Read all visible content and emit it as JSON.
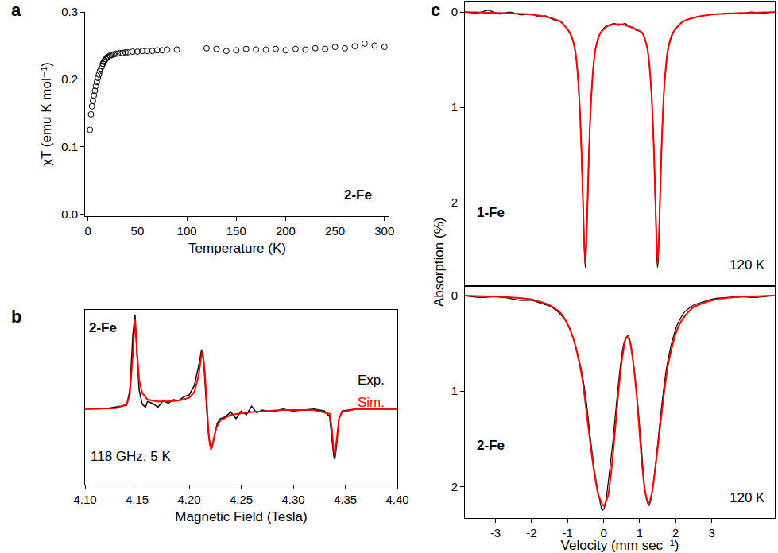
{
  "chart_data": [
    {
      "type": "scatter",
      "label": "a",
      "xlabel": "Temperature (K)",
      "ylabel": "χT (emu K mol⁻¹)",
      "xlim": [
        -3,
        305
      ],
      "xticks": [
        0,
        50,
        100,
        150,
        200,
        250,
        300
      ],
      "ylim": [
        -0.003,
        0.3
      ],
      "yticks": [
        {
          "value": 0,
          "label": "0.0"
        },
        {
          "value": 0.1,
          "label": "0.1"
        },
        {
          "value": 0.2,
          "label": "0.2"
        },
        {
          "value": 0.3,
          "label": "0.3"
        }
      ],
      "annotations": [
        "2-Fe"
      ],
      "series": [
        {
          "color": "#000000",
          "marker": "open_circle",
          "x": [
            2,
            3,
            4,
            5,
            6,
            7,
            8,
            9,
            10,
            11,
            12,
            13,
            14,
            15,
            16,
            17,
            18,
            19,
            20,
            22,
            24,
            26,
            28,
            30,
            32,
            35,
            38,
            40,
            45,
            50,
            55,
            60,
            65,
            70,
            75,
            80,
            90,
            120,
            130,
            140,
            150,
            160,
            170,
            180,
            190,
            200,
            210,
            220,
            230,
            240,
            250,
            260,
            270,
            280,
            290,
            300
          ],
          "values": [
            0.125,
            0.148,
            0.16,
            0.168,
            0.176,
            0.183,
            0.19,
            0.196,
            0.202,
            0.207,
            0.212,
            0.216,
            0.22,
            0.223,
            0.226,
            0.228,
            0.23,
            0.232,
            0.233,
            0.235,
            0.236,
            0.237,
            0.238,
            0.238,
            0.239,
            0.239,
            0.24,
            0.24,
            0.241,
            0.241,
            0.242,
            0.242,
            0.242,
            0.243,
            0.243,
            0.244,
            0.244,
            0.246,
            0.245,
            0.242,
            0.243,
            0.245,
            0.244,
            0.244,
            0.245,
            0.243,
            0.245,
            0.244,
            0.246,
            0.245,
            0.248,
            0.246,
            0.249,
            0.253,
            0.25,
            0.248
          ]
        }
      ]
    },
    {
      "type": "line",
      "label": "b",
      "xlabel": "Magnetic Field (Tesla)",
      "xlim": [
        4.1,
        4.4
      ],
      "xticks": [
        {
          "value": 4.1,
          "label": "4.10"
        },
        {
          "value": 4.15,
          "label": "4.15"
        },
        {
          "value": 4.2,
          "label": "4.20"
        },
        {
          "value": 4.25,
          "label": "4.25"
        },
        {
          "value": 4.3,
          "label": "4.30"
        },
        {
          "value": 4.35,
          "label": "4.35"
        },
        {
          "value": 4.4,
          "label": "4.40"
        }
      ],
      "ylim": [
        -0.8,
        1.05
      ],
      "yticks": [],
      "tick_labels": "x",
      "legend": "right",
      "annotations": [
        "2-Fe",
        "118 GHz, 5 K"
      ],
      "series": [
        {
          "name": "Exp.",
          "color": "#000000",
          "line_style": "solid",
          "x": [
            4.1,
            4.12,
            4.14,
            4.143,
            4.146,
            4.148,
            4.15,
            4.152,
            4.155,
            4.158,
            4.16,
            4.165,
            4.17,
            4.175,
            4.18,
            4.185,
            4.19,
            4.195,
            4.2,
            4.205,
            4.209,
            4.212,
            4.214,
            4.216,
            4.218,
            4.22,
            4.222,
            4.224,
            4.227,
            4.23,
            4.235,
            4.24,
            4.245,
            4.25,
            4.255,
            4.26,
            4.265,
            4.27,
            4.28,
            4.29,
            4.3,
            4.31,
            4.32,
            4.33,
            4.335,
            4.337,
            4.339,
            4.34,
            4.342,
            4.344,
            4.347,
            4.36,
            4.38,
            4.4
          ],
          "values": [
            0,
            0.005,
            0.04,
            0.2,
            0.8,
            1.0,
            0.55,
            0.2,
            0.05,
            0.02,
            0.08,
            0.06,
            0.02,
            0.09,
            0.06,
            0.1,
            0.09,
            0.13,
            0.15,
            0.25,
            0.45,
            0.63,
            0.5,
            0.1,
            -0.2,
            -0.38,
            -0.41,
            -0.3,
            -0.15,
            -0.1,
            -0.08,
            -0.03,
            -0.1,
            -0.02,
            -0.06,
            0.03,
            -0.04,
            -0.01,
            -0.03,
            0.0,
            -0.02,
            -0.01,
            0,
            -0.02,
            -0.08,
            -0.3,
            -0.5,
            -0.53,
            -0.35,
            -0.1,
            -0.02,
            0,
            0,
            0
          ]
        },
        {
          "name": "Sim.",
          "color": "#ff0000",
          "line_style": "solid",
          "x": [
            4.1,
            4.13,
            4.14,
            4.143,
            4.146,
            4.148,
            4.15,
            4.152,
            4.155,
            4.16,
            4.17,
            4.18,
            4.19,
            4.2,
            4.205,
            4.209,
            4.212,
            4.213,
            4.215,
            4.217,
            4.219,
            4.221,
            4.223,
            4.226,
            4.23,
            4.24,
            4.26,
            4.29,
            4.32,
            4.335,
            4.337,
            4.339,
            4.34,
            4.342,
            4.344,
            4.347,
            4.36,
            4.4
          ],
          "values": [
            0,
            0.01,
            0.05,
            0.15,
            0.6,
            0.95,
            0.6,
            0.3,
            0.17,
            0.1,
            0.08,
            0.08,
            0.09,
            0.12,
            0.18,
            0.35,
            0.58,
            0.61,
            0.4,
            0.0,
            -0.3,
            -0.43,
            -0.35,
            -0.2,
            -0.12,
            -0.06,
            -0.03,
            -0.01,
            -0.01,
            -0.05,
            -0.2,
            -0.45,
            -0.48,
            -0.3,
            -0.1,
            -0.03,
            0,
            0
          ]
        }
      ]
    },
    {
      "type": "line",
      "label": "c",
      "xlabel": "Velocity (mm sec⁻¹)",
      "ylabel": "Absorption (%)",
      "xlim": [
        -3.85,
        4.75
      ],
      "xticks": [
        -3,
        -2,
        -1,
        0,
        1,
        2,
        3
      ],
      "panels": [
        {
          "annotations": [
            "1-Fe",
            "120 K"
          ],
          "ylim": [
            2.875,
            -0.11
          ],
          "yticks": [
            0,
            1,
            2
          ],
          "tick_labels": "y",
          "series": [
            {
              "color": "#000000",
              "line_style": "solid",
              "x": [
                -3.85,
                -3.5,
                -3.2,
                -2.9,
                -2.6,
                -2.3,
                -2.0,
                -1.8,
                -1.6,
                -1.4,
                -1.2,
                -1.05,
                -0.93,
                -0.85,
                -0.79,
                -0.73,
                -0.69,
                -0.65,
                -0.61,
                -0.58,
                -0.55,
                -0.53,
                -0.51,
                -0.49,
                -0.47,
                -0.44,
                -0.41,
                -0.37,
                -0.33,
                -0.28,
                -0.23,
                -0.16,
                -0.09,
                0.0,
                0.1,
                0.2,
                0.3,
                0.4,
                0.5,
                0.6,
                0.7,
                0.8,
                0.9,
                1.0,
                1.08,
                1.16,
                1.22,
                1.28,
                1.32,
                1.36,
                1.4,
                1.43,
                1.46,
                1.48,
                1.5,
                1.52,
                1.54,
                1.57,
                1.6,
                1.64,
                1.68,
                1.73,
                1.78,
                1.85,
                1.92,
                2.05,
                2.2,
                2.4,
                2.6,
                2.9,
                3.2,
                3.5,
                3.8,
                4.1,
                4.4,
                4.75
              ],
              "values": [
                0.0,
                0.01,
                -0.02,
                0.02,
                0.0,
                0.03,
                0.02,
                0.05,
                0.04,
                0.08,
                0.1,
                0.16,
                0.23,
                0.3,
                0.42,
                0.6,
                0.85,
                1.1,
                1.55,
                1.9,
                2.3,
                2.55,
                2.68,
                2.6,
                2.3,
                1.95,
                1.5,
                1.1,
                0.82,
                0.55,
                0.4,
                0.28,
                0.22,
                0.17,
                0.14,
                0.13,
                0.12,
                0.14,
                0.13,
                0.12,
                0.15,
                0.16,
                0.19,
                0.2,
                0.23,
                0.3,
                0.4,
                0.6,
                0.82,
                1.1,
                1.5,
                1.95,
                2.3,
                2.6,
                2.68,
                2.55,
                2.3,
                1.9,
                1.5,
                1.1,
                0.8,
                0.58,
                0.42,
                0.3,
                0.23,
                0.15,
                0.1,
                0.07,
                0.05,
                0.03,
                0.02,
                0.01,
                0.02,
                0.0,
                0.01,
                0.0
              ]
            },
            {
              "color": "#ff0000",
              "line_style": "solid",
              "x": [
                -3.85,
                -2.2,
                -1.6,
                -1.2,
                -0.93,
                -0.79,
                -0.69,
                -0.61,
                -0.55,
                -0.51,
                -0.47,
                -0.41,
                -0.33,
                -0.23,
                -0.09,
                0.1,
                0.3,
                0.5,
                0.7,
                0.9,
                1.08,
                1.22,
                1.32,
                1.4,
                1.46,
                1.5,
                1.54,
                1.6,
                1.68,
                1.78,
                1.92,
                2.2,
                2.6,
                3.2,
                4.75
              ],
              "values": [
                0,
                0.02,
                0.05,
                0.1,
                0.22,
                0.4,
                0.8,
                1.5,
                2.3,
                2.65,
                2.3,
                1.5,
                0.8,
                0.4,
                0.22,
                0.15,
                0.13,
                0.13,
                0.15,
                0.18,
                0.22,
                0.4,
                0.8,
                1.5,
                2.3,
                2.65,
                2.3,
                1.5,
                0.8,
                0.4,
                0.22,
                0.1,
                0.05,
                0.02,
                0
              ]
            }
          ]
        },
        {
          "annotations": [
            "2-Fe",
            "120 K"
          ],
          "ylim": [
            2.33,
            -0.1
          ],
          "yticks": [
            0,
            1,
            2
          ],
          "series": [
            {
              "color": "#000000",
              "line_style": "solid",
              "x": [
                -3.85,
                -3.4,
                -3.0,
                -2.6,
                -2.3,
                -2.0,
                -1.75,
                -1.5,
                -1.3,
                -1.1,
                -0.95,
                -0.8,
                -0.65,
                -0.5,
                -0.38,
                -0.25,
                -0.12,
                -0.04,
                0.02,
                0.08,
                0.16,
                0.25,
                0.35,
                0.45,
                0.55,
                0.62,
                0.68,
                0.75,
                0.85,
                0.95,
                1.05,
                1.13,
                1.2,
                1.26,
                1.32,
                1.4,
                1.5,
                1.62,
                1.75,
                1.9,
                2.05,
                2.25,
                2.5,
                2.8,
                3.1,
                3.4,
                3.8,
                4.2,
                4.75
              ],
              "values": [
                0.0,
                0.02,
                0.01,
                0.03,
                0.05,
                0.05,
                0.08,
                0.11,
                0.16,
                0.24,
                0.33,
                0.5,
                0.72,
                1.05,
                1.45,
                1.85,
                2.12,
                2.25,
                2.22,
                2.1,
                1.85,
                1.55,
                1.15,
                0.78,
                0.52,
                0.44,
                0.42,
                0.5,
                0.78,
                1.15,
                1.6,
                1.98,
                2.15,
                2.2,
                2.12,
                1.9,
                1.55,
                1.12,
                0.75,
                0.48,
                0.3,
                0.17,
                0.1,
                0.06,
                0.03,
                0.02,
                0.01,
                0.02,
                0.0
              ]
            },
            {
              "color": "#ff0000",
              "line_style": "solid",
              "x": [
                -3.85,
                -2.5,
                -2.0,
                -1.5,
                -1.2,
                -1.0,
                -0.8,
                -0.6,
                -0.45,
                -0.3,
                -0.15,
                0.0,
                0.12,
                0.25,
                0.4,
                0.5,
                0.6,
                0.65,
                0.72,
                0.82,
                0.93,
                1.05,
                1.15,
                1.25,
                1.35,
                1.5,
                1.65,
                1.8,
                2.0,
                2.2,
                2.5,
                3.0,
                3.5,
                4.75
              ],
              "values": [
                0,
                0.02,
                0.04,
                0.1,
                0.18,
                0.3,
                0.5,
                0.85,
                1.3,
                1.75,
                2.08,
                2.2,
                2.1,
                1.7,
                1.05,
                0.7,
                0.47,
                0.43,
                0.47,
                0.7,
                1.1,
                1.7,
                2.05,
                2.18,
                2.05,
                1.6,
                1.1,
                0.7,
                0.4,
                0.24,
                0.12,
                0.05,
                0.02,
                0
              ]
            }
          ]
        }
      ]
    }
  ]
}
